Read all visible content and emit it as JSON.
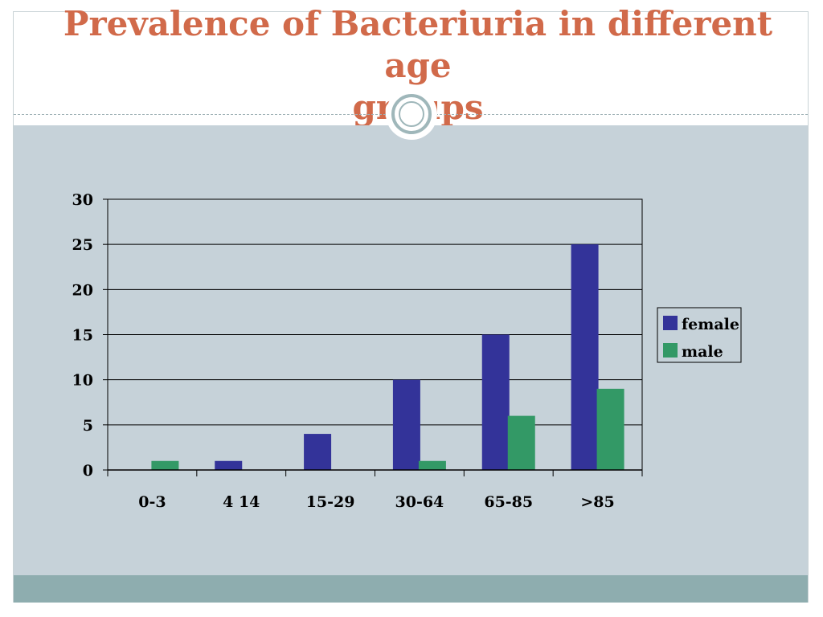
{
  "slide": {
    "title_line1": "Prevalence of Bacteriuria in different age",
    "title_line2": "groups"
  },
  "colors": {
    "title": "#d16a4a",
    "panel": "#c6d2d9",
    "footer": "#8eadaf",
    "female": "#333399",
    "male": "#339966"
  },
  "chart_data": {
    "type": "bar",
    "categories": [
      "0-3",
      "4  14",
      "15-29",
      "30-64",
      "65-85",
      ">85"
    ],
    "series": [
      {
        "name": "female",
        "values": [
          0,
          1,
          4,
          10,
          15,
          25
        ],
        "color": "#333399"
      },
      {
        "name": "male",
        "values": [
          1,
          0,
          0,
          1,
          6,
          9
        ],
        "color": "#339966"
      }
    ],
    "yticks": [
      "0",
      "5",
      "10",
      "15",
      "20",
      "25",
      "30"
    ],
    "ylim": [
      0,
      30
    ],
    "grid": true,
    "legend": "right"
  }
}
